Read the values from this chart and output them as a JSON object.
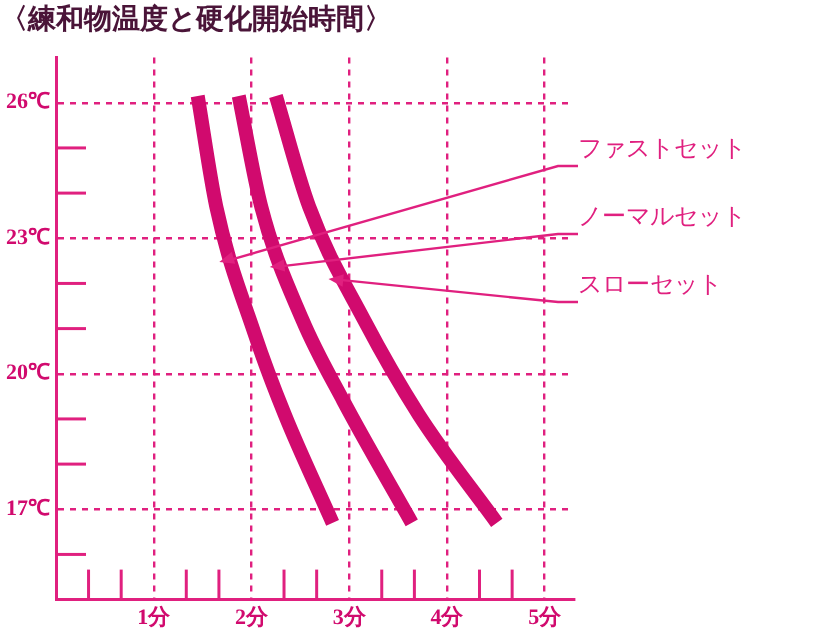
{
  "chart_data": {
    "type": "line",
    "title": "〈練和物温度と硬化開始時間〉",
    "series": [
      {
        "name": "ファストセット",
        "color": "#d10a6e",
        "x": [
          1.45,
          1.64,
          2.03,
          2.34,
          2.83
        ],
        "values": [
          26.15,
          23.7,
          20.9,
          19.1,
          16.7
        ]
      },
      {
        "name": "ノーマルセット",
        "color": "#d10a6e",
        "x": [
          1.87,
          2.1,
          2.52,
          2.94,
          3.64
        ],
        "values": [
          26.15,
          23.7,
          21.2,
          19.4,
          16.7
        ]
      },
      {
        "name": "スローセット",
        "color": "#d10a6e",
        "x": [
          2.25,
          2.59,
          3.15,
          3.71,
          4.51
        ],
        "values": [
          26.15,
          23.7,
          21.2,
          19.1,
          16.7
        ]
      }
    ],
    "xlim": [
      0,
      5.3
    ],
    "ylim": [
      15,
      27
    ],
    "xticks": [
      {
        "value": 0.333,
        "label": null
      },
      {
        "value": 0.667,
        "label": null
      },
      {
        "value": 1,
        "label": "1分"
      },
      {
        "value": 1.333,
        "label": null
      },
      {
        "value": 1.667,
        "label": null
      },
      {
        "value": 2,
        "label": "2分"
      },
      {
        "value": 2.333,
        "label": null
      },
      {
        "value": 2.667,
        "label": null
      },
      {
        "value": 3,
        "label": "3分"
      },
      {
        "value": 3.333,
        "label": null
      },
      {
        "value": 3.667,
        "label": null
      },
      {
        "value": 4,
        "label": "4分"
      },
      {
        "value": 4.333,
        "label": null
      },
      {
        "value": 4.667,
        "label": null
      },
      {
        "value": 5,
        "label": "5分"
      }
    ],
    "yticks": [
      {
        "value": 16,
        "label": null
      },
      {
        "value": 17,
        "label": "17℃"
      },
      {
        "value": 18,
        "label": null
      },
      {
        "value": 19,
        "label": null
      },
      {
        "value": 20,
        "label": "20℃"
      },
      {
        "value": 21,
        "label": null
      },
      {
        "value": 22,
        "label": null
      },
      {
        "value": 23,
        "label": "23℃"
      },
      {
        "value": 24,
        "label": null
      },
      {
        "value": 25,
        "label": null
      },
      {
        "value": 26,
        "label": "26℃"
      }
    ],
    "grid": true,
    "marker": "none",
    "line_style": "solid"
  }
}
